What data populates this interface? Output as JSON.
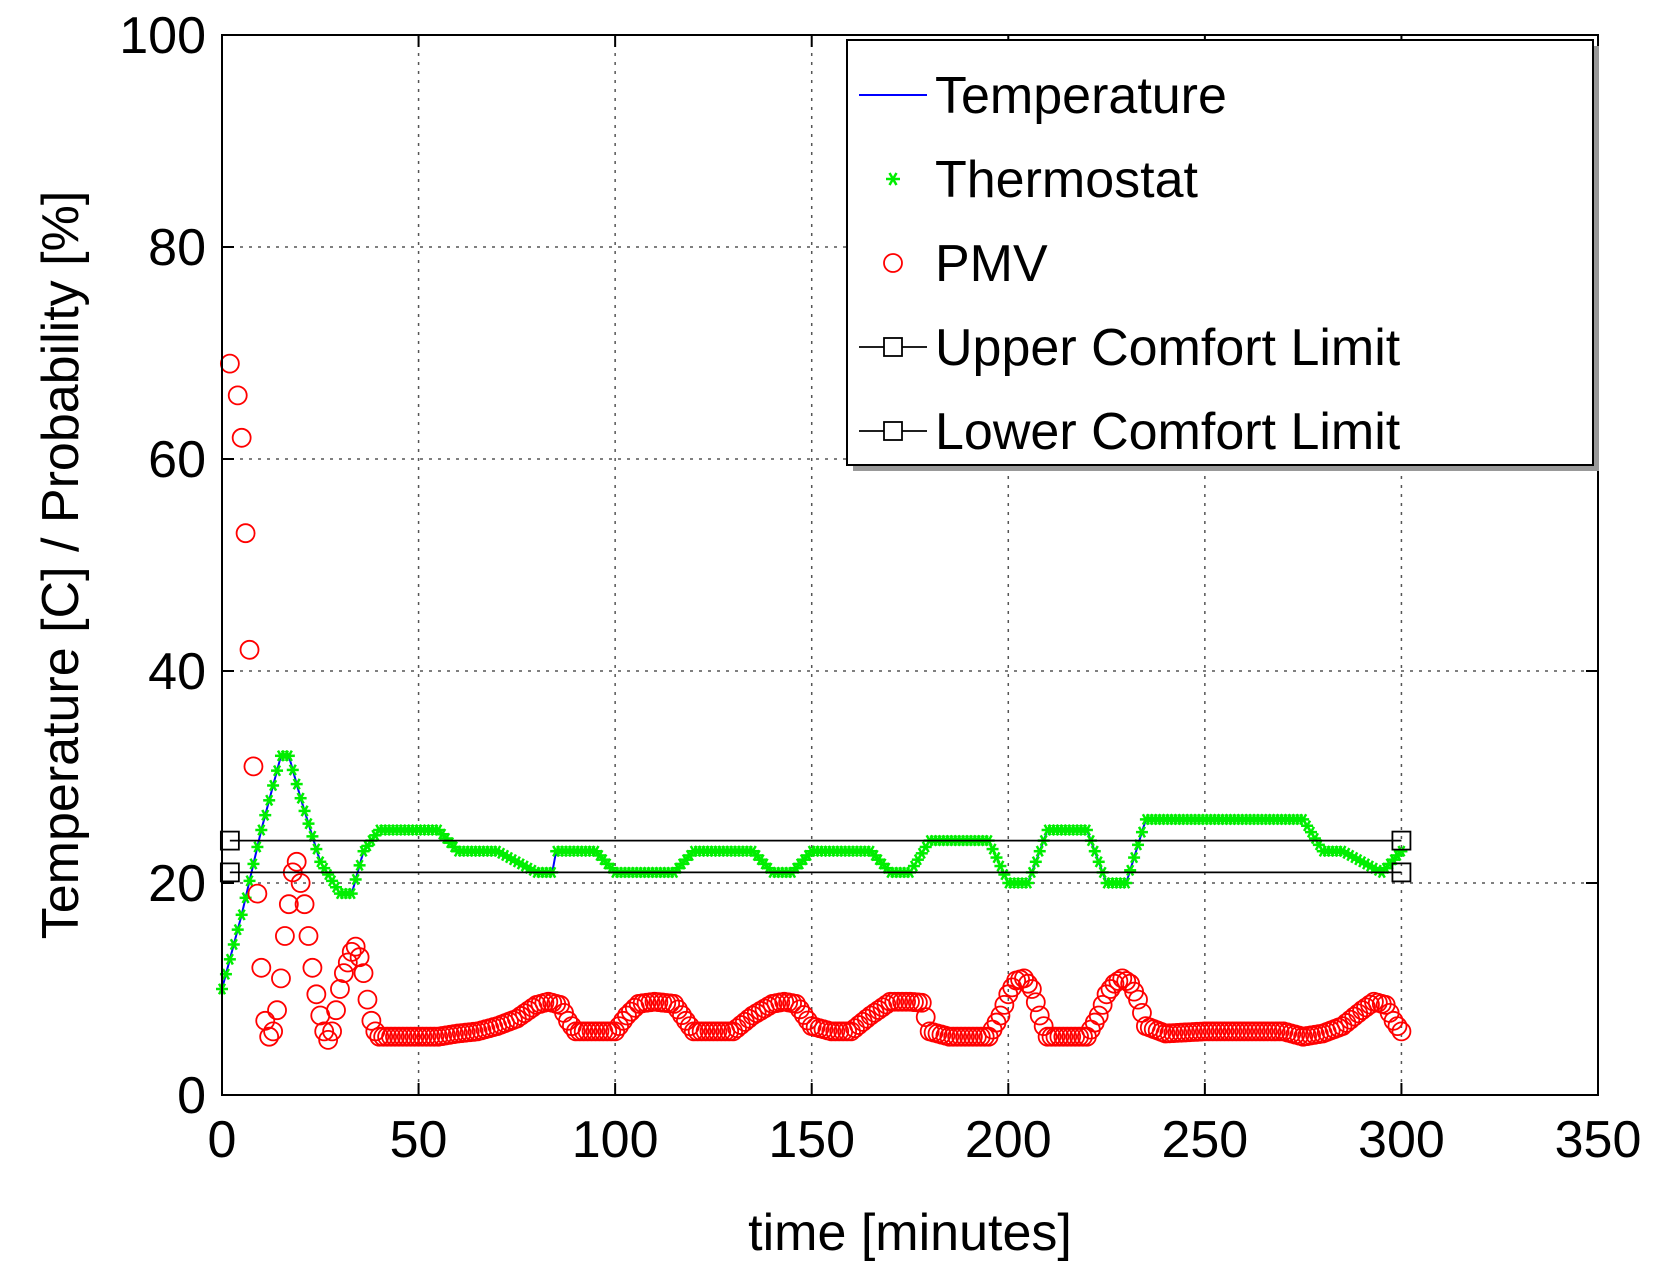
{
  "chart_data": {
    "type": "line",
    "title": "",
    "xlabel": "time [minutes]",
    "ylabel": "Temperature [C] /  Probability [%]",
    "xlim": [
      0,
      350
    ],
    "ylim": [
      0,
      100
    ],
    "xticks": [
      0,
      50,
      100,
      150,
      200,
      250,
      300,
      350
    ],
    "yticks": [
      0,
      20,
      40,
      60,
      80,
      100
    ],
    "grid": true,
    "legend_position": "top-right",
    "series": [
      {
        "name": "Temperature",
        "style": "line",
        "color": "#0000ff",
        "x": [
          0,
          5,
          10,
          15,
          17,
          20,
          25,
          30,
          33,
          36,
          40,
          45,
          55,
          60,
          70,
          75,
          80,
          84,
          85,
          90,
          95,
          100,
          110,
          115,
          120,
          130,
          135,
          140,
          145,
          150,
          160,
          165,
          170,
          175,
          180,
          190,
          195,
          200,
          205,
          210,
          215,
          220,
          225,
          230,
          235,
          240,
          245,
          260,
          270,
          275,
          280,
          285,
          295,
          300
        ],
        "y": [
          10,
          17,
          25,
          32,
          32,
          28,
          22,
          19,
          19,
          23,
          25,
          25,
          25,
          23,
          23,
          22,
          21,
          21,
          23,
          23,
          23,
          21,
          21,
          21,
          23,
          23,
          23,
          21,
          21,
          23,
          23,
          23,
          21,
          21,
          24,
          24,
          24,
          20,
          20,
          25,
          25,
          25,
          20,
          20,
          26,
          26,
          26,
          26,
          26,
          26,
          23,
          23,
          21,
          23
        ]
      },
      {
        "name": "Thermostat",
        "style": "markers",
        "marker": "*",
        "color": "#00ee00",
        "x": [
          0,
          5,
          10,
          15,
          17,
          20,
          25,
          30,
          33,
          36,
          40,
          45,
          55,
          60,
          70,
          75,
          80,
          84,
          85,
          90,
          95,
          100,
          110,
          115,
          120,
          130,
          135,
          140,
          145,
          150,
          160,
          165,
          170,
          175,
          180,
          190,
          195,
          200,
          205,
          210,
          215,
          220,
          225,
          230,
          235,
          240,
          245,
          260,
          270,
          275,
          280,
          285,
          295,
          300
        ],
        "y": [
          10,
          17,
          25,
          32,
          32,
          28,
          22,
          19,
          19,
          23,
          25,
          25,
          25,
          23,
          23,
          22,
          21,
          21,
          23,
          23,
          23,
          21,
          21,
          21,
          23,
          23,
          23,
          21,
          21,
          23,
          23,
          23,
          21,
          21,
          24,
          24,
          24,
          20,
          20,
          25,
          25,
          25,
          20,
          20,
          26,
          26,
          26,
          26,
          26,
          26,
          23,
          23,
          21,
          23
        ]
      },
      {
        "name": "PMV",
        "style": "markers",
        "marker": "o",
        "color": "#ff0000",
        "x": [
          2,
          4,
          5,
          6,
          7,
          8,
          9,
          10,
          11,
          12,
          13,
          14,
          15,
          16,
          17,
          18,
          19,
          20,
          21,
          22,
          23,
          24,
          25,
          26,
          27,
          28,
          29,
          30,
          31,
          32,
          33,
          34,
          35,
          36,
          37,
          38,
          39,
          40,
          42,
          45,
          50,
          55,
          60,
          65,
          70,
          75,
          80,
          83,
          86,
          88,
          90,
          95,
          100,
          103,
          106,
          110,
          115,
          118,
          120,
          125,
          130,
          135,
          140,
          143,
          146,
          150,
          155,
          160,
          165,
          170,
          175,
          178,
          180,
          185,
          190,
          195,
          198,
          200,
          202,
          204,
          206,
          208,
          210,
          215,
          220,
          223,
          225,
          227,
          229,
          231,
          233,
          235,
          240,
          250,
          260,
          270,
          275,
          280,
          285,
          290,
          293,
          296,
          298,
          300
        ],
        "y": [
          69,
          66,
          62,
          53,
          42,
          31,
          19,
          12,
          7,
          5.5,
          6,
          8,
          11,
          15,
          18,
          21,
          22,
          20,
          18,
          15,
          12,
          9.5,
          7.5,
          6,
          5.2,
          6,
          8,
          10,
          11.5,
          12.5,
          13.5,
          14,
          13,
          11.5,
          9,
          7,
          6,
          5.5,
          5.5,
          5.5,
          5.5,
          5.5,
          5.8,
          6,
          6.5,
          7.2,
          8.5,
          8.8,
          8.5,
          7,
          6,
          6,
          6,
          7.5,
          8.6,
          8.8,
          8.6,
          7,
          6,
          6,
          6,
          7.5,
          8.6,
          8.8,
          8.6,
          6.5,
          6,
          6,
          7.5,
          8.8,
          8.8,
          8.7,
          6,
          5.5,
          5.5,
          5.5,
          7.5,
          9.5,
          10.8,
          11,
          10,
          7.5,
          5.5,
          5.5,
          5.5,
          7.5,
          9.5,
          10.5,
          11,
          10.5,
          9,
          6.5,
          5.8,
          6,
          6,
          6,
          5.5,
          5.8,
          6.5,
          8,
          8.8,
          8.5,
          7,
          6
        ]
      },
      {
        "name": "Upper Comfort Limit",
        "style": "line-square",
        "color": "#000000",
        "x": [
          2,
          300
        ],
        "y": [
          24,
          24
        ]
      },
      {
        "name": "Lower Comfort Limit",
        "style": "line-square",
        "color": "#000000",
        "x": [
          2,
          300
        ],
        "y": [
          21,
          21
        ]
      }
    ]
  }
}
